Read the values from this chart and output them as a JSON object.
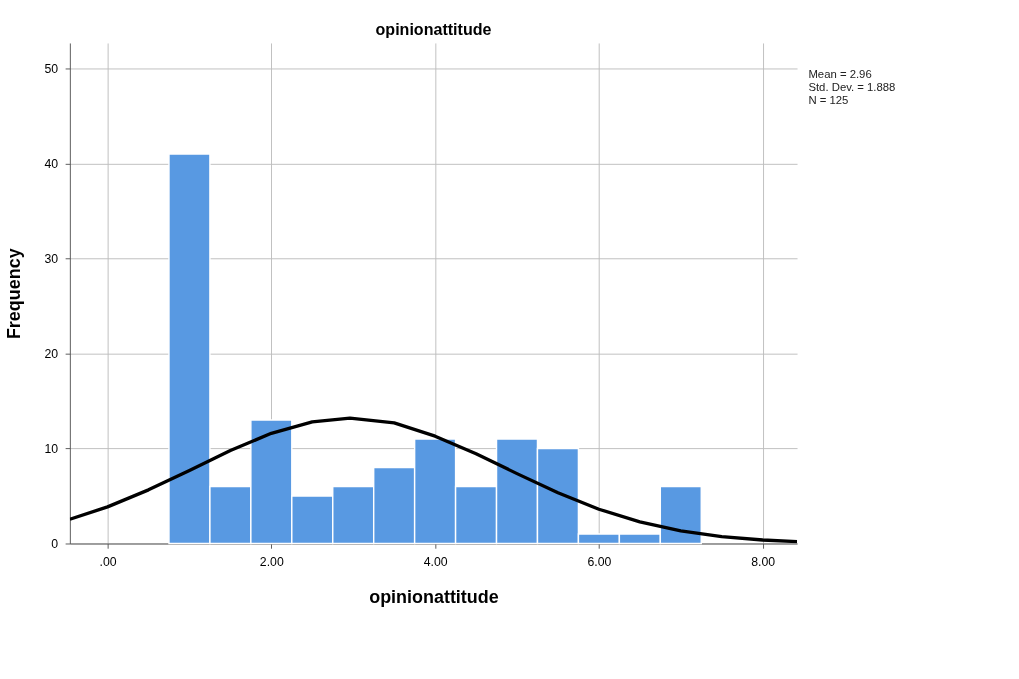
{
  "chart_data": {
    "type": "histogram",
    "title": "opinionattitude",
    "xlabel": "opinionattitude",
    "ylabel": "Frequency",
    "bins": [
      0.75,
      1.25,
      1.75,
      2.25,
      2.75,
      3.25,
      3.75,
      4.25,
      4.75,
      5.25,
      5.75,
      6.25,
      6.75,
      7.25
    ],
    "values": [
      41,
      6,
      13,
      5,
      6,
      8,
      11,
      6,
      11,
      10,
      1,
      1,
      6
    ],
    "color": "#5899e2",
    "series": [
      {
        "type": "line",
        "color": "#000000",
        "x": [
          -0.46,
          0,
          0.5,
          1,
          1.5,
          2,
          2.5,
          2.96,
          3.5,
          4,
          4.5,
          5,
          5.5,
          6,
          6.5,
          7,
          7.5,
          8,
          8.42
        ],
        "values": [
          2.56,
          3.86,
          5.65,
          7.7,
          9.79,
          11.6,
          12.8,
          13.2,
          12.7,
          11.3,
          9.46,
          7.36,
          5.34,
          3.61,
          2.28,
          1.34,
          0.73,
          0.37,
          0.2
        ]
      }
    ],
    "xlim": [
      -0.46,
      8.42
    ],
    "ylim": [
      0,
      52.7
    ],
    "xticks": [
      {
        "value": 0,
        "label": ".00"
      },
      {
        "value": 2,
        "label": "2.00"
      },
      {
        "value": 4,
        "label": "4.00"
      },
      {
        "value": 6,
        "label": "6.00"
      },
      {
        "value": 8,
        "label": "8.00"
      }
    ],
    "yticks": [
      0,
      10,
      20,
      30,
      40,
      50
    ],
    "grid": true,
    "annotations": [
      "Mean = 2.96",
      "Std. Dev. = 1.888",
      "N = 125"
    ]
  }
}
